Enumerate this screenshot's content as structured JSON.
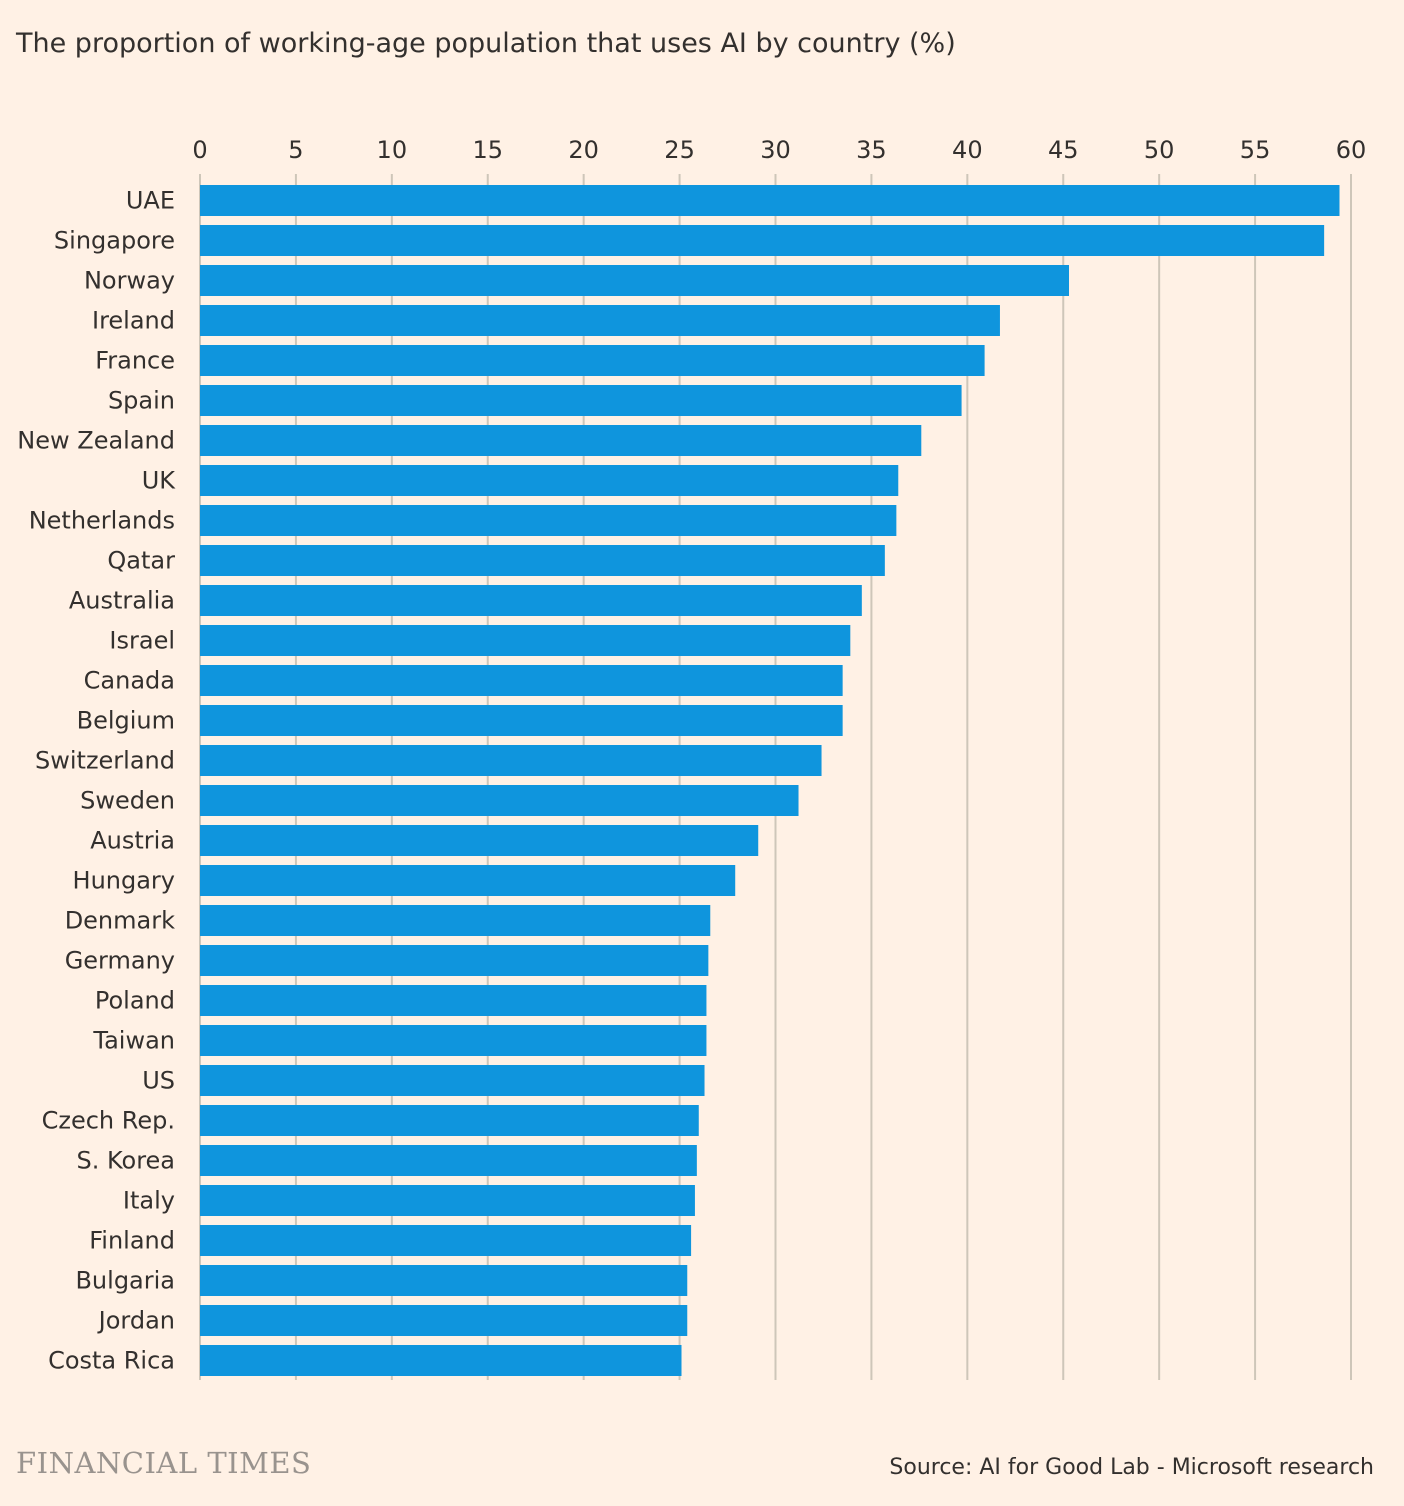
{
  "colors": {
    "background": "#fff1e5",
    "bar": "#0f95dd",
    "gridline": "#cec6b9",
    "text": "#33302e",
    "brand": "#99938e"
  },
  "footer": {
    "brand": "FINANCIAL TIMES",
    "source": "Source: AI for Good Lab - Microsoft research"
  },
  "chart_data": {
    "type": "bar",
    "orientation": "horizontal",
    "title": "The proportion of working-age population that uses AI by country (%)",
    "xlabel": "",
    "ylabel": "",
    "xlim": [
      0,
      60
    ],
    "x_ticks": [
      0,
      5,
      10,
      15,
      20,
      25,
      30,
      35,
      40,
      45,
      50,
      55,
      60
    ],
    "x_axis_position": "top",
    "grid": true,
    "legend": "none",
    "categories": [
      "UAE",
      "Singapore",
      "Norway",
      "Ireland",
      "France",
      "Spain",
      "New Zealand",
      "UK",
      "Netherlands",
      "Qatar",
      "Australia",
      "Israel",
      "Canada",
      "Belgium",
      "Switzerland",
      "Sweden",
      "Austria",
      "Hungary",
      "Denmark",
      "Germany",
      "Poland",
      "Taiwan",
      "US",
      "Czech Rep.",
      "S. Korea",
      "Italy",
      "Finland",
      "Bulgaria",
      "Jordan",
      "Costa Rica"
    ],
    "values": [
      59.4,
      58.6,
      45.3,
      41.7,
      40.9,
      39.7,
      37.6,
      36.4,
      36.3,
      35.7,
      34.5,
      33.9,
      33.5,
      33.5,
      32.4,
      31.2,
      29.1,
      27.9,
      26.6,
      26.5,
      26.4,
      26.4,
      26.3,
      26.0,
      25.9,
      25.8,
      25.6,
      25.4,
      25.4,
      25.1
    ]
  }
}
